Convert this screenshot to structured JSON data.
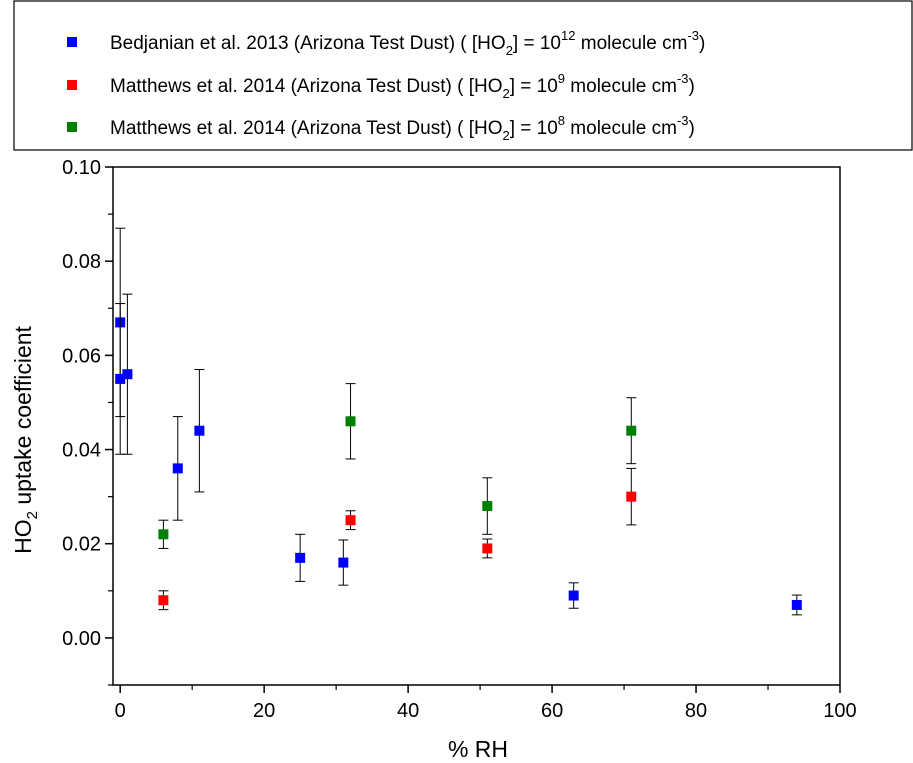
{
  "chart_data": {
    "type": "scatter",
    "xlabel": "% RH",
    "ylabel": {
      "prefix": "HO",
      "sub": "2",
      "suffix": " uptake coefficient"
    },
    "xlim": [
      -1,
      100
    ],
    "ylim": [
      -0.01,
      0.1
    ],
    "x_ticks": [
      0,
      20,
      40,
      60,
      80,
      100
    ],
    "x_tick_labels": [
      "0",
      "20",
      "40",
      "60",
      "80",
      "100"
    ],
    "y_ticks": [
      0.0,
      0.02,
      0.04,
      0.06,
      0.08,
      0.1
    ],
    "y_tick_labels": [
      "0.00",
      "0.02",
      "0.04",
      "0.06",
      "0.08",
      "0.10"
    ],
    "grid": false,
    "legend_position": "top",
    "series": [
      {
        "name": "Bedjanian et al. 2013 (Arizona Test Dust) ( [HO2] = 10^12 molecule cm^-3)",
        "legend_parts": {
          "text": "Bedjanian et al. 2013 (Arizona Test Dust) ( [HO",
          "sub": "2",
          "mid": "] = 10",
          "sup": "12",
          "unit": " molecule cm",
          "unit_sup": "-3",
          "end": ")"
        },
        "color": "#0000ff",
        "points": [
          {
            "x": 0,
            "y": 0.067,
            "err": 0.02
          },
          {
            "x": 0,
            "y": 0.055,
            "err": 0.016
          },
          {
            "x": 1,
            "y": 0.056,
            "err": 0.017
          },
          {
            "x": 8,
            "y": 0.036,
            "err": 0.011
          },
          {
            "x": 11,
            "y": 0.044,
            "err": 0.013
          },
          {
            "x": 25,
            "y": 0.017,
            "err": 0.005
          },
          {
            "x": 31,
            "y": 0.016,
            "err": 0.0048
          },
          {
            "x": 63,
            "y": 0.009,
            "err": 0.0027
          },
          {
            "x": 94,
            "y": 0.007,
            "err": 0.0021
          }
        ]
      },
      {
        "name": "Matthews et al. 2014 (Arizona Test Dust) ( [HO2] = 10^9 molecule cm^-3)",
        "legend_parts": {
          "text": "Matthews et al. 2014 (Arizona Test Dust) ( [HO",
          "sub": "2",
          "mid": "] = 10",
          "sup": "9",
          "unit": " molecule cm",
          "unit_sup": "-3",
          "end": ")"
        },
        "color": "#ff0000",
        "points": [
          {
            "x": 6,
            "y": 0.008,
            "err": 0.002
          },
          {
            "x": 32,
            "y": 0.025,
            "err": 0.002
          },
          {
            "x": 51,
            "y": 0.019,
            "err": 0.002
          },
          {
            "x": 71,
            "y": 0.03,
            "err": 0.006
          }
        ]
      },
      {
        "name": "Matthews et al. 2014 (Arizona Test Dust) ( [HO2] = 10^8 molecule cm^-3)",
        "legend_parts": {
          "text": "Matthews et al. 2014 (Arizona Test Dust) ( [HO",
          "sub": "2",
          "mid": "] = 10",
          "sup": "8",
          "unit": " molecule cm",
          "unit_sup": "-3",
          "end": ")"
        },
        "color": "#008000",
        "points": [
          {
            "x": 6,
            "y": 0.022,
            "err": 0.003
          },
          {
            "x": 32,
            "y": 0.046,
            "err": 0.008
          },
          {
            "x": 51,
            "y": 0.028,
            "err": 0.006
          },
          {
            "x": 71,
            "y": 0.044,
            "err": 0.007
          }
        ]
      }
    ]
  }
}
